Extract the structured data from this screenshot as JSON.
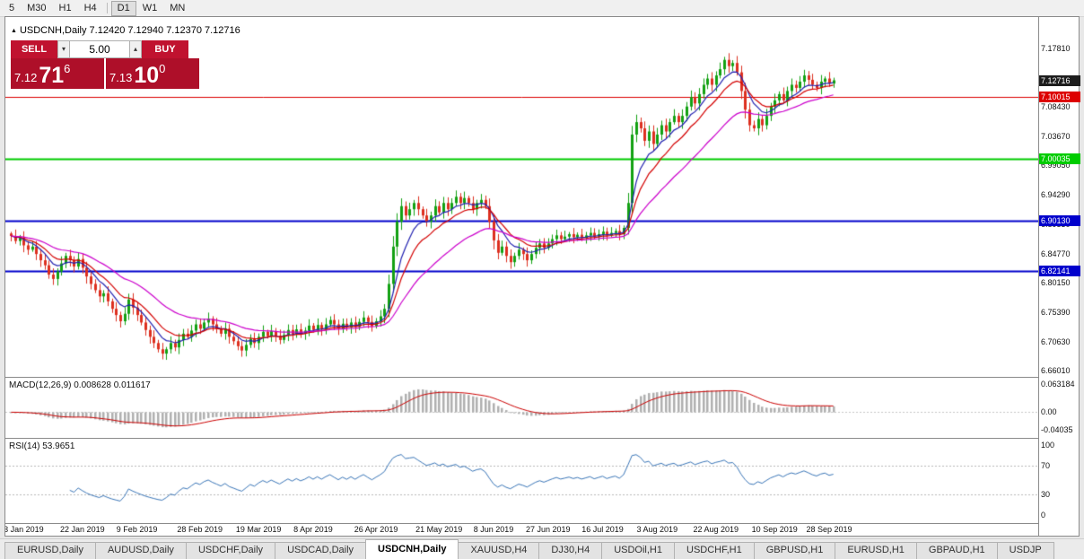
{
  "toolbar": {
    "timeframes": [
      {
        "label": "5",
        "active": false
      },
      {
        "label": "M30",
        "active": false
      },
      {
        "label": "H1",
        "active": false
      },
      {
        "label": "H4",
        "active": false,
        "divider_after": true
      },
      {
        "label": "D1",
        "active": true
      },
      {
        "label": "W1",
        "active": false
      },
      {
        "label": "MN",
        "active": false
      }
    ]
  },
  "chart_header": {
    "symbol": "USDCNH",
    "timeframe": "Daily",
    "display": "USDCNH,Daily 7.12420 7.12940 7.12370 7.12716",
    "open": "7.12420",
    "high": "7.12940",
    "low": "7.12370",
    "close": "7.12716"
  },
  "trade_panel": {
    "sell_label": "SELL",
    "buy_label": "BUY",
    "volume": "5.00",
    "sell_price": {
      "base": "7.12",
      "big": "71",
      "sup": "6"
    },
    "buy_price": {
      "base": "7.13",
      "big": "10",
      "sup": "0"
    }
  },
  "tab_bar": {
    "tabs": [
      {
        "label": "EURUSD,Daily",
        "active": false
      },
      {
        "label": "AUDUSD,Daily",
        "active": false
      },
      {
        "label": "USDCHF,Daily",
        "active": false
      },
      {
        "label": "USDCAD,Daily",
        "active": false
      },
      {
        "label": "USDCNH,Daily",
        "active": true
      },
      {
        "label": "XAUUSD,H4",
        "active": false
      },
      {
        "label": "DJ30,H4",
        "active": false
      },
      {
        "label": "USDOil,H1",
        "active": false
      },
      {
        "label": "USDCHF,H1",
        "active": false
      },
      {
        "label": "GBPUSD,H1",
        "active": false
      },
      {
        "label": "EURUSD,H1",
        "active": false
      },
      {
        "label": "GBPAUD,H1",
        "active": false
      },
      {
        "label": "USDJP",
        "active": false
      }
    ]
  },
  "colors": {
    "chart_bg": "#ffffff",
    "up_candle": "#12a112",
    "down_candle": "#dd2f1f",
    "ma_fast_red": "#d40000",
    "ma_mid_blue": "#2020b0",
    "ma_slow_magenta": "#cc00cc",
    "hline_red": "#dd0000",
    "hline_green": "#00cc00",
    "hline_blue": "#0000cc",
    "badge_current_bg": "#1d1d1d",
    "macd_histogram": "#b0b0b0",
    "macd_signal": "#cc0000",
    "rsi_line": "#3a76b8",
    "trade_red": "#c0122f",
    "trade_red_dark": "#ae0f29"
  },
  "chart_data": [
    {
      "type": "candlestick",
      "symbol": "USDCNH",
      "timeframe": "Daily",
      "ylim": [
        6.655,
        7.2
      ],
      "closes": [
        6.877,
        6.869,
        6.874,
        6.862,
        6.855,
        6.86,
        6.848,
        6.838,
        6.83,
        6.815,
        6.808,
        6.82,
        6.833,
        6.845,
        6.838,
        6.828,
        6.84,
        6.826,
        6.812,
        6.8,
        6.79,
        6.78,
        6.785,
        6.772,
        6.76,
        6.75,
        6.74,
        6.752,
        6.775,
        6.762,
        6.75,
        6.738,
        6.726,
        6.715,
        6.705,
        6.695,
        6.688,
        6.695,
        6.705,
        6.698,
        6.71,
        6.72,
        6.715,
        6.725,
        6.735,
        6.728,
        6.738,
        6.744,
        6.735,
        6.728,
        6.72,
        6.728,
        6.715,
        6.708,
        6.7,
        6.693,
        6.702,
        6.712,
        6.705,
        6.715,
        6.723,
        6.716,
        6.724,
        6.717,
        6.71,
        6.718,
        6.726,
        6.719,
        6.727,
        6.72,
        6.725,
        6.733,
        6.726,
        6.734,
        6.727,
        6.735,
        6.742,
        6.735,
        6.728,
        6.736,
        6.73,
        6.738,
        6.731,
        6.739,
        6.746,
        6.739,
        6.732,
        6.74,
        6.748,
        6.76,
        6.8,
        6.86,
        6.9,
        6.925,
        6.91,
        6.92,
        6.93,
        6.92,
        6.91,
        6.9,
        6.91,
        6.925,
        6.915,
        6.93,
        6.92,
        6.93,
        6.94,
        6.93,
        6.938,
        6.93,
        6.92,
        6.93,
        6.935,
        6.925,
        6.9,
        6.87,
        6.85,
        6.86,
        6.845,
        6.835,
        6.845,
        6.855,
        6.848,
        6.838,
        6.848,
        6.858,
        6.865,
        6.858,
        6.865,
        6.872,
        6.878,
        6.872,
        6.876,
        6.88,
        6.875,
        6.879,
        6.874,
        6.878,
        6.882,
        6.876,
        6.88,
        6.884,
        6.878,
        6.882,
        6.885,
        6.88,
        6.89,
        6.93,
        7.04,
        7.06,
        7.05,
        7.03,
        7.045,
        7.025,
        7.04,
        7.055,
        7.045,
        7.06,
        7.07,
        7.06,
        7.07,
        7.085,
        7.1,
        7.09,
        7.105,
        7.12,
        7.13,
        7.12,
        7.135,
        7.145,
        7.16,
        7.15,
        7.155,
        7.14,
        7.11,
        7.08,
        7.055,
        7.05,
        7.065,
        7.055,
        7.07,
        7.085,
        7.095,
        7.105,
        7.095,
        7.11,
        7.12,
        7.115,
        7.125,
        7.135,
        7.128,
        7.12,
        7.115,
        7.125,
        7.13,
        7.122,
        7.12716
      ],
      "price_ticks": [
        7.1781,
        7.0843,
        7.0367,
        6.9905,
        6.9429,
        6.8953,
        6.8477,
        6.8015,
        6.7539,
        6.7063,
        6.6601
      ],
      "hlines": [
        {
          "value": 7.10015,
          "color": "#dd0000",
          "width": 1
        },
        {
          "value": 7.00035,
          "color": "#00cc00",
          "width": 2
        },
        {
          "value": 6.9013,
          "color": "#0000cc",
          "width": 2
        },
        {
          "value": 6.82141,
          "color": "#0000cc",
          "width": 2
        }
      ],
      "current_price": 7.12716,
      "ma_overlays": [
        {
          "period": 7,
          "method": "ema",
          "color": "#2020b0"
        },
        {
          "period": 12,
          "method": "ema",
          "color": "#d40000"
        },
        {
          "period": 28,
          "method": "ema",
          "color": "#cc00cc"
        }
      ],
      "x_labels": [
        {
          "label": "3 Jan 2019",
          "i": 3
        },
        {
          "label": "22 Jan 2019",
          "i": 17
        },
        {
          "label": "9 Feb 2019",
          "i": 30
        },
        {
          "label": "28 Feb 2019",
          "i": 45
        },
        {
          "label": "19 Mar 2019",
          "i": 59
        },
        {
          "label": "8 Apr 2019",
          "i": 72
        },
        {
          "label": "26 Apr 2019",
          "i": 87
        },
        {
          "label": "21 May 2019",
          "i": 102
        },
        {
          "label": "8 Jun 2019",
          "i": 115
        },
        {
          "label": "27 Jun 2019",
          "i": 128
        },
        {
          "label": "16 Jul 2019",
          "i": 141
        },
        {
          "label": "3 Aug 2019",
          "i": 154
        },
        {
          "label": "22 Aug 2019",
          "i": 168
        },
        {
          "label": "10 Sep 2019",
          "i": 182
        },
        {
          "label": "28 Sep 2019",
          "i": 195
        }
      ]
    },
    {
      "type": "macd",
      "label": "MACD(12,26,9) 0.008628 0.011617",
      "params": [
        12,
        26,
        9
      ],
      "current_values": [
        "0.008628",
        "0.011617"
      ],
      "ylim": [
        -0.048,
        0.07
      ],
      "axis_ticks": [
        {
          "v": 0.063184,
          "label": "0.063184"
        },
        {
          "v": 0,
          "label": "0.00"
        },
        {
          "v": -0.04035,
          "label": "-0.04035"
        }
      ]
    },
    {
      "type": "rsi",
      "label": "RSI(14) 53.9651",
      "period": 14,
      "current_value": "53.9651",
      "ylim": [
        0,
        100
      ],
      "levels": [
        70,
        30
      ],
      "axis_ticks": [
        100,
        70,
        30,
        0
      ]
    }
  ]
}
